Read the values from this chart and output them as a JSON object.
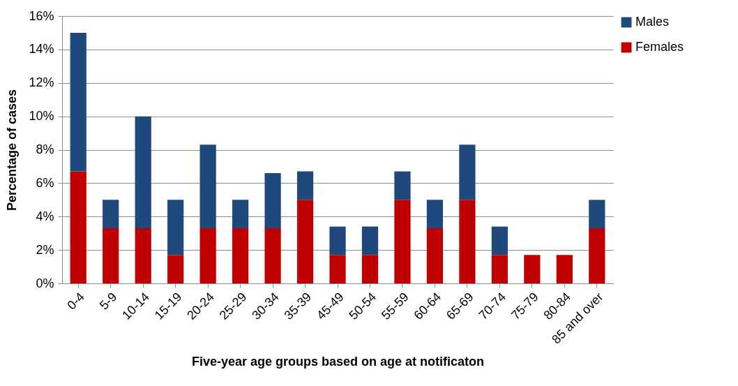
{
  "chart_data": {
    "type": "bar",
    "stacked": true,
    "xlabel": "Five-year age groups based on age at notificaton",
    "ylabel": "Percentage of cases",
    "categories": [
      "0-4",
      "5-9",
      "10-14",
      "15-19",
      "20-24",
      "25-29",
      "30-34",
      "35-39",
      "45-49",
      "50-54",
      "55-59",
      "60-64",
      "65-69",
      "70-74",
      "75-79",
      "80-84",
      "85 and over"
    ],
    "series": [
      {
        "name": "Females",
        "color": "#c00000",
        "values": [
          6.7,
          3.3,
          3.3,
          1.7,
          3.3,
          3.3,
          3.3,
          5.0,
          1.7,
          1.7,
          5.0,
          3.3,
          5.0,
          1.7,
          1.7,
          1.7,
          3.3
        ]
      },
      {
        "name": "Males",
        "color": "#1f497d",
        "values": [
          8.3,
          1.7,
          6.7,
          3.3,
          5.0,
          1.7,
          3.3,
          1.7,
          1.7,
          1.7,
          1.7,
          1.7,
          3.3,
          1.7,
          0,
          0,
          1.7
        ]
      }
    ],
    "ylim": [
      0,
      16
    ],
    "yticks": [
      {
        "value": 0,
        "label": "0%"
      },
      {
        "value": 2,
        "label": "2%"
      },
      {
        "value": 4,
        "label": "4%"
      },
      {
        "value": 6,
        "label": "6%"
      },
      {
        "value": 8,
        "label": "8%"
      },
      {
        "value": 10,
        "label": "10%"
      },
      {
        "value": 12,
        "label": "12%"
      },
      {
        "value": 14,
        "label": "14%"
      },
      {
        "value": 16,
        "label": "16%"
      }
    ],
    "grid": "y",
    "legend": "right"
  }
}
